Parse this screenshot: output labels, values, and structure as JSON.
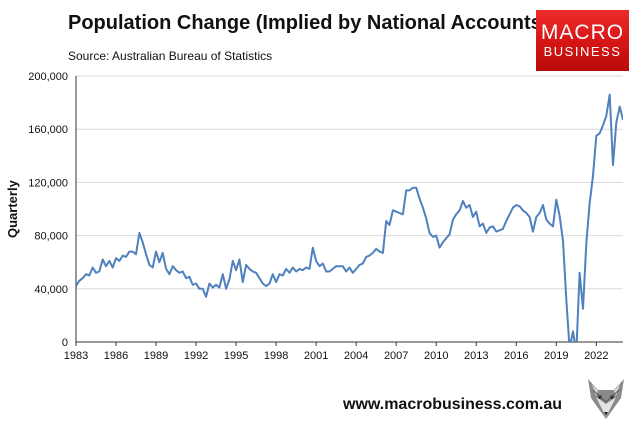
{
  "header": {
    "title": "Population Change (Implied by National Accounts)",
    "source": "Source: Australian Bureau of Statistics"
  },
  "logo": {
    "line1": "MACRO",
    "line2": "BUSINESS",
    "color": "#d51515"
  },
  "footer": {
    "website": "www.macrobusiness.com.au"
  },
  "colors": {
    "line": "#4f81bd",
    "grid": "#d9d9d9",
    "axis": "#333333"
  },
  "icons": {
    "footer_logo": "fox-icon"
  },
  "chart_data": {
    "type": "line",
    "title": "Population Change (Implied by National Accounts)",
    "ylabel": "Quarterly",
    "xlabel": "",
    "ylim": [
      0,
      200000
    ],
    "xlim": [
      1983.0,
      2024.0
    ],
    "grid": true,
    "legend": "none",
    "y_ticks": [
      0,
      40000,
      80000,
      120000,
      160000,
      200000
    ],
    "y_tick_labels": [
      "0",
      "40,000",
      "80,000",
      "120,000",
      "160,000",
      "200,000"
    ],
    "x_tick_labels": [
      "1983",
      "1986",
      "1989",
      "1992",
      "1995",
      "1998",
      "2001",
      "2004",
      "2007",
      "2010",
      "2013",
      "2016",
      "2019",
      "2022"
    ],
    "x_tick_values": [
      1983,
      1986,
      1989,
      1992,
      1995,
      1998,
      2001,
      2004,
      2007,
      2010,
      2013,
      2016,
      2019,
      2022
    ],
    "series": [
      {
        "name": "",
        "x_start": 1983.0,
        "x_step": 0.25,
        "values": [
          42000,
          46000,
          48000,
          51000,
          50000,
          56000,
          52000,
          53000,
          62000,
          57000,
          61000,
          56000,
          63000,
          61000,
          65000,
          64000,
          68000,
          68000,
          66000,
          82000,
          75000,
          66000,
          58000,
          56000,
          68000,
          60000,
          67000,
          55000,
          51000,
          57000,
          54000,
          52000,
          53000,
          48000,
          49000,
          43000,
          44000,
          40000,
          40000,
          34000,
          44000,
          41000,
          43000,
          41000,
          51000,
          40000,
          47000,
          61000,
          54000,
          62000,
          45000,
          58000,
          55000,
          53000,
          52000,
          48000,
          44000,
          42000,
          44000,
          51000,
          45000,
          51000,
          50000,
          55000,
          52000,
          56000,
          53000,
          55000,
          54000,
          56000,
          55000,
          71000,
          61000,
          57000,
          59000,
          53000,
          53000,
          55000,
          57000,
          57000,
          57000,
          53000,
          56000,
          52000,
          55000,
          58000,
          59000,
          64000,
          65000,
          67000,
          70000,
          68000,
          67000,
          91000,
          88000,
          99000,
          98000,
          97000,
          96000,
          114000,
          114000,
          116000,
          116000,
          108000,
          101000,
          93000,
          82000,
          79000,
          80000,
          71000,
          75000,
          78000,
          81000,
          92000,
          96000,
          99000,
          106000,
          101000,
          103000,
          94000,
          98000,
          87000,
          89000,
          82000,
          86000,
          87000,
          83000,
          84000,
          85000,
          91000,
          96000,
          101000,
          103000,
          102000,
          99000,
          97000,
          94000,
          83000,
          94000,
          97000,
          103000,
          92000,
          89000,
          87000,
          107000,
          95000,
          76000,
          32000,
          -5000,
          8000,
          -8000,
          52000,
          25000,
          74000,
          104000,
          125000,
          155000,
          157000,
          163000,
          170000,
          186000,
          133000,
          165000,
          177000,
          167000
        ]
      }
    ]
  }
}
